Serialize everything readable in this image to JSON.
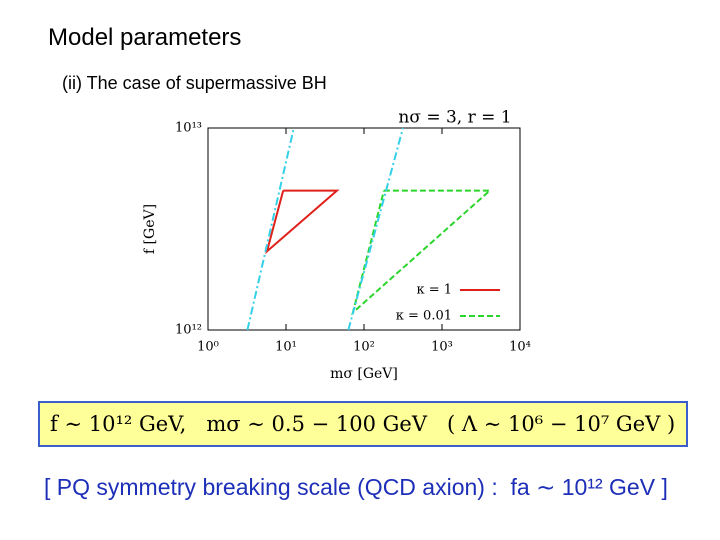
{
  "slide": {
    "title": "Model parameters",
    "subtitle": "(ii) The case of supermassive BH",
    "formula": "f ∼ 10¹² GeV,   mσ ∼ 0.5 − 100 GeV   ( Λ ∼ 10⁶ − 10⁷ GeV )",
    "note": "[ PQ symmetry breaking scale (QCD axion) :  fa ∼ 10¹² GeV ]"
  },
  "chart_data": {
    "type": "line",
    "title": "nσ = 3,  r = 1",
    "xlabel": "mσ [GeV]",
    "ylabel": "f [GeV]",
    "xscale": "log",
    "yscale": "log",
    "xlim": [
      1,
      10000
    ],
    "ylim": [
      1000000000000.0,
      10000000000000.0
    ],
    "xticks": [
      {
        "value": 1,
        "label": "10⁰"
      },
      {
        "value": 10,
        "label": "10¹"
      },
      {
        "value": 100,
        "label": "10²"
      },
      {
        "value": 1000,
        "label": "10³"
      },
      {
        "value": 10000,
        "label": "10⁴"
      }
    ],
    "yticks": [
      {
        "value": 1000000000000.0,
        "label": "10¹²"
      },
      {
        "value": 10000000000000.0,
        "label": "10¹³"
      }
    ],
    "legend": "lower right",
    "series": [
      {
        "name": "κ = 1",
        "color": "#e0201a",
        "dash": "solid",
        "x": [
          9.2,
          45,
          5.7,
          9.2
        ],
        "values": [
          4900000000000.0,
          4900000000000.0,
          2450000000000.0,
          4900000000000.0
        ]
      },
      {
        "name": "κ = 0.01",
        "color": "#2bd62b",
        "dash": "dashed",
        "x": [
          180,
          4100,
          72,
          180
        ],
        "values": [
          4900000000000.0,
          4900000000000.0,
          1220000000000.0,
          4900000000000.0
        ]
      },
      {
        "color": "#34d0e8",
        "dash": "dashdot",
        "x": [
          3.2,
          12.6
        ],
        "values": [
          1000000000000.0,
          10000000000000.0
        ]
      },
      {
        "color": "#34d0e8",
        "dash": "dashdot",
        "x": [
          63,
          316
        ],
        "values": [
          1000000000000.0,
          10000000000000.0
        ]
      }
    ]
  }
}
